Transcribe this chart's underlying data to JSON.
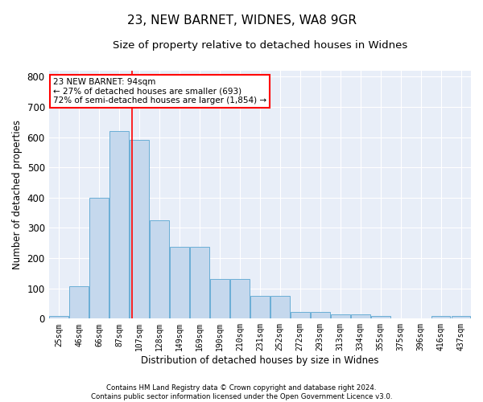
{
  "title1": "23, NEW BARNET, WIDNES, WA8 9GR",
  "title2": "Size of property relative to detached houses in Widnes",
  "xlabel": "Distribution of detached houses by size in Widnes",
  "ylabel": "Number of detached properties",
  "footer1": "Contains HM Land Registry data © Crown copyright and database right 2024.",
  "footer2": "Contains public sector information licensed under the Open Government Licence v3.0.",
  "categories": [
    "25sqm",
    "46sqm",
    "66sqm",
    "87sqm",
    "107sqm",
    "128sqm",
    "149sqm",
    "169sqm",
    "190sqm",
    "210sqm",
    "231sqm",
    "252sqm",
    "272sqm",
    "293sqm",
    "313sqm",
    "334sqm",
    "355sqm",
    "375sqm",
    "396sqm",
    "416sqm",
    "437sqm"
  ],
  "values": [
    8,
    107,
    400,
    620,
    590,
    325,
    238,
    238,
    130,
    130,
    75,
    75,
    22,
    22,
    15,
    15,
    8,
    0,
    0,
    8,
    8
  ],
  "bar_color": "#c5d8ed",
  "bar_edge_color": "#6aaed6",
  "red_line_x": 3.62,
  "annotation_text": "23 NEW BARNET: 94sqm\n← 27% of detached houses are smaller (693)\n72% of semi-detached houses are larger (1,854) →",
  "annotation_box_color": "white",
  "annotation_box_edge_color": "red",
  "ylim": [
    0,
    820
  ],
  "yticks": [
    0,
    100,
    200,
    300,
    400,
    500,
    600,
    700,
    800
  ],
  "bg_color": "#e8eef8",
  "grid_color": "white",
  "title1_fontsize": 11,
  "title2_fontsize": 9.5
}
